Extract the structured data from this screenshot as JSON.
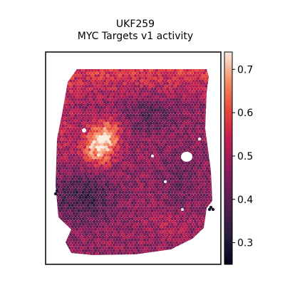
{
  "chart_data": {
    "type": "heatmap",
    "title": "UKF259",
    "subtitle": "MYC Targets v1 activity",
    "xlabel": "",
    "ylabel": "",
    "colormap": "rocket",
    "colorbar": {
      "range": [
        0.25,
        0.74
      ],
      "ticks": [
        0.3,
        0.4,
        0.5,
        0.6,
        0.7
      ],
      "tick_labels": [
        "0.3",
        "0.4",
        "0.5",
        "0.6",
        "0.7"
      ]
    },
    "regions": [
      {
        "label": "high-activity cluster (left-center)",
        "value": 0.72
      },
      {
        "label": "upper band",
        "value": 0.58
      },
      {
        "label": "tissue average",
        "value": 0.47
      },
      {
        "label": "lower-left low-activity area",
        "value": 0.33
      }
    ],
    "grid": false,
    "legend": "right"
  }
}
